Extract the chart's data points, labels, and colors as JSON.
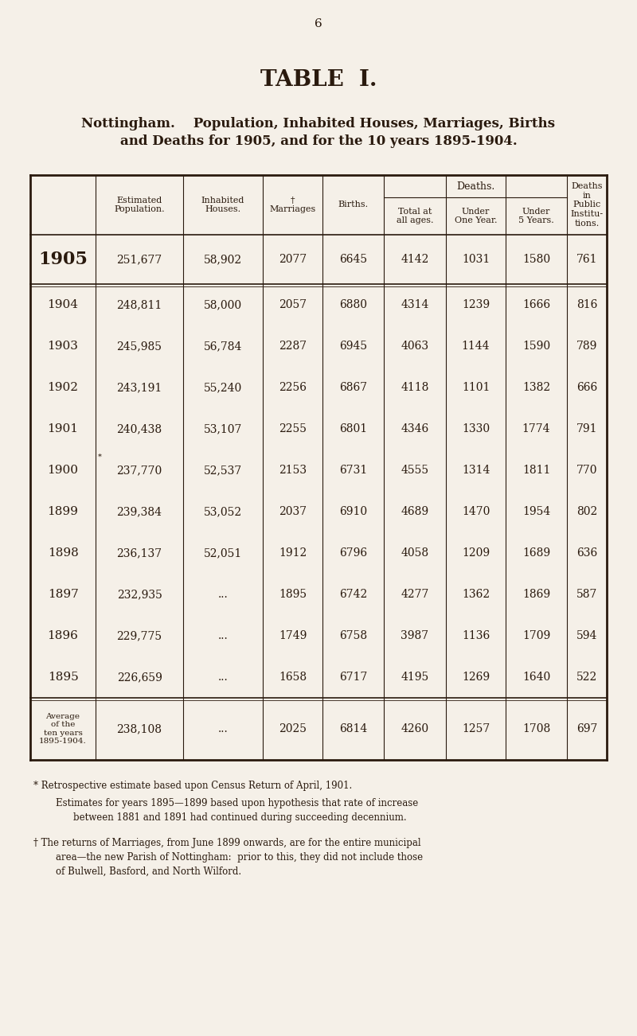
{
  "page_number": "6",
  "title": "TABLE  I.",
  "subtitle_line1": "Nottingham.    Population, Inhabited Houses, Marriages, Births",
  "subtitle_line2": "and Deaths for 1905, and for the 10 years 1895-1904.",
  "bg_color": "#f5f0e8",
  "text_color": "#2a1a0e",
  "rows": [
    {
      "year": "1905",
      "pop": "251,677",
      "houses": "58,902",
      "marriages": "2077",
      "births": "6645",
      "total_deaths": "4142",
      "under1": "1031",
      "under5": "1580",
      "public": "761",
      "bold_year": true,
      "star_pop": false
    },
    {
      "year": "1904",
      "pop": "248,811",
      "houses": "58,000",
      "marriages": "2057",
      "births": "6880",
      "total_deaths": "4314",
      "under1": "1239",
      "under5": "1666",
      "public": "816",
      "bold_year": false,
      "star_pop": false
    },
    {
      "year": "1903",
      "pop": "245,985",
      "houses": "56,784",
      "marriages": "2287",
      "births": "6945",
      "total_deaths": "4063",
      "under1": "1144",
      "under5": "1590",
      "public": "789",
      "bold_year": false,
      "star_pop": false
    },
    {
      "year": "1902",
      "pop": "243,191",
      "houses": "55,240",
      "marriages": "2256",
      "births": "6867",
      "total_deaths": "4118",
      "under1": "1101",
      "under5": "1382",
      "public": "666",
      "bold_year": false,
      "star_pop": false
    },
    {
      "year": "1901",
      "pop": "240,438",
      "houses": "53,107",
      "marriages": "2255",
      "births": "6801",
      "total_deaths": "4346",
      "under1": "1330",
      "under5": "1774",
      "public": "791",
      "bold_year": false,
      "star_pop": false
    },
    {
      "year": "1900",
      "pop": "237,770",
      "houses": "52,537",
      "marriages": "2153",
      "births": "6731",
      "total_deaths": "4555",
      "under1": "1314",
      "under5": "1811",
      "public": "770",
      "bold_year": false,
      "star_pop": true
    },
    {
      "year": "1899",
      "pop": "239,384",
      "houses": "53,052",
      "marriages": "2037",
      "births": "6910",
      "total_deaths": "4689",
      "under1": "1470",
      "under5": "1954",
      "public": "802",
      "bold_year": false,
      "star_pop": false
    },
    {
      "year": "1898",
      "pop": "236,137",
      "houses": "52,051",
      "marriages": "1912",
      "births": "6796",
      "total_deaths": "4058",
      "under1": "1209",
      "under5": "1689",
      "public": "636",
      "bold_year": false,
      "star_pop": false
    },
    {
      "year": "1897",
      "pop": "232,935",
      "houses": "...",
      "marriages": "1895",
      "births": "6742",
      "total_deaths": "4277",
      "under1": "1362",
      "under5": "1869",
      "public": "587",
      "bold_year": false,
      "star_pop": false
    },
    {
      "year": "1896",
      "pop": "229,775",
      "houses": "...",
      "marriages": "1749",
      "births": "6758",
      "total_deaths": "3987",
      "under1": "1136",
      "under5": "1709",
      "public": "594",
      "bold_year": false,
      "star_pop": false
    },
    {
      "year": "1895",
      "pop": "226,659",
      "houses": "...",
      "marriages": "1658",
      "births": "6717",
      "total_deaths": "4195",
      "under1": "1269",
      "under5": "1640",
      "public": "522",
      "bold_year": false,
      "star_pop": false
    }
  ],
  "avg_row": {
    "year_label": "Average\nof the\nten years\n1895-1904.",
    "pop": "238,108",
    "houses": "...",
    "marriages": "2025",
    "births": "6814",
    "total_deaths": "4260",
    "under1": "1257",
    "under5": "1708",
    "public": "697"
  },
  "footnote1_star": "* Retrospective estimate based upon Census Return of April, 1901.",
  "footnote1_indent1": "Estimates for years 1895—1899 based upon hypothesis that rate of increase",
  "footnote1_indent2": "between 1881 and 1891 had continued during succeeding decennium.",
  "footnote2_line1": "† The returns of Marriages, from June 1899 onwards, are for the entire municipal",
  "footnote2_line2": "area—the new Parish of Nottingham:  prior to this, they did not include those",
  "footnote2_line3": "of Bulwell, Basford, and North Wilford."
}
